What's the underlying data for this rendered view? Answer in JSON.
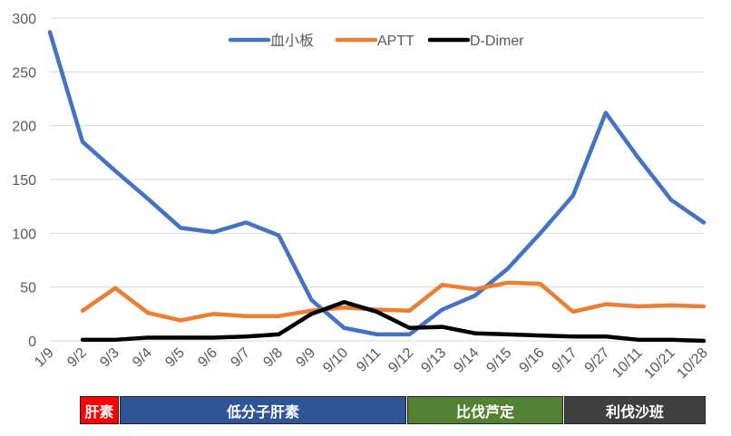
{
  "chart_data": {
    "type": "line",
    "title": "",
    "xlabel": "",
    "ylabel": "",
    "ylim": [
      0,
      300
    ],
    "yticks": [
      0,
      50,
      100,
      150,
      200,
      250,
      300
    ],
    "grid": true,
    "legend_position": "top-center",
    "categories": [
      "1/9",
      "9/2",
      "9/3",
      "9/4",
      "9/5",
      "9/6",
      "9/7",
      "9/8",
      "9/9",
      "9/10",
      "9/11",
      "9/12",
      "9/13",
      "9/14",
      "9/15",
      "9/16",
      "9/17",
      "9/27",
      "10/11",
      "10/21",
      "10/28"
    ],
    "series": [
      {
        "name": "血小板",
        "color": "#4472C4",
        "values": [
          287,
          185,
          158,
          132,
          105,
          101,
          110,
          98,
          38,
          12,
          6,
          6,
          29,
          42,
          67,
          100,
          135,
          212,
          170,
          131,
          110
        ]
      },
      {
        "name": "APTT",
        "color": "#ED7D31",
        "values": [
          null,
          28,
          49,
          26,
          19,
          25,
          23,
          23,
          28,
          31,
          29,
          28,
          52,
          48,
          54,
          53,
          27,
          34,
          32,
          33,
          32
        ]
      },
      {
        "name": "D-Dimer",
        "color": "#000000",
        "values": [
          null,
          1,
          1,
          3,
          3,
          3,
          4,
          6,
          25,
          36,
          27,
          12,
          13,
          7,
          6,
          5,
          4,
          4,
          1,
          1,
          0
        ]
      }
    ]
  },
  "treatments": [
    {
      "label": "肝素",
      "color": "#FF0000"
    },
    {
      "label": "低分子肝素",
      "color": "#2F5597"
    },
    {
      "label": "比伐芦定",
      "color": "#548235"
    },
    {
      "label": "利伐沙班",
      "color": "#404040"
    }
  ]
}
